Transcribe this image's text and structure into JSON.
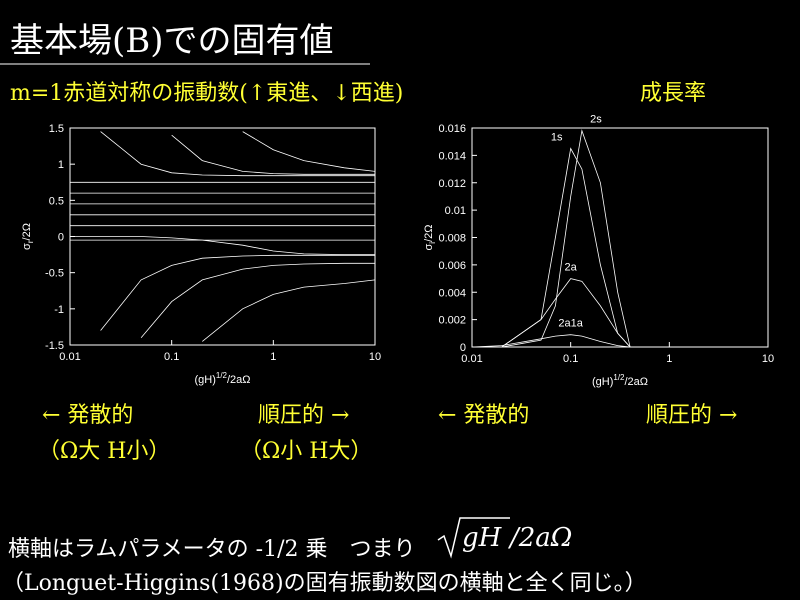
{
  "header": {
    "title": "基本場(B)での固有値",
    "subtitle": "m=1赤道対称の振動数(↑東進、↓西進)",
    "growth_label": "成長率"
  },
  "notes": {
    "left_arrow_1": "←  発散的",
    "right_arrow_1": "順圧的  →",
    "left_paren": "（Ω大 H小）",
    "right_paren": "（Ω小 H大）",
    "left_arrow_2": "←  発散的",
    "right_arrow_2": "順圧的  →"
  },
  "footer": {
    "line1": "横軸はラムパラメータの -1/2 乗　つまり",
    "formula_root": "gH",
    "formula_rest": "/2aΩ",
    "line2": "（Longuet-Higgins(1968)の固有振動数図の横軸と全く同じ。）"
  },
  "chart_data": [
    {
      "type": "line",
      "xlog": true,
      "xlim": [
        0.01,
        10
      ],
      "ylim": [
        -1.5,
        1.5
      ],
      "xticks": [
        0.01,
        0.1,
        1,
        10
      ],
      "yticks": [
        -1.5,
        -1,
        -0.5,
        0,
        0.5,
        1,
        1.5
      ],
      "xlabel": [
        "(gH)",
        "1/2",
        "/2aΩ"
      ],
      "ylabel": [
        "σ",
        "r",
        "/2Ω"
      ],
      "color": "#ffffff",
      "x": [
        0.01,
        0.02,
        0.05,
        0.1,
        0.2,
        0.5,
        1,
        2,
        5,
        10
      ],
      "series": [
        {
          "values": [
            null,
            null,
            null,
            null,
            null,
            1.45,
            1.2,
            1.05,
            0.95,
            0.9
          ]
        },
        {
          "values": [
            null,
            null,
            null,
            1.4,
            1.05,
            0.9,
            0.87,
            0.86,
            0.86,
            0.86
          ]
        },
        {
          "values": [
            null,
            1.45,
            1.0,
            0.88,
            0.85,
            0.84,
            0.84,
            0.84,
            0.84,
            0.84
          ]
        },
        {
          "values": [
            0.75,
            0.75,
            0.75,
            0.75,
            0.75,
            0.75,
            0.75,
            0.75,
            0.75,
            0.75
          ]
        },
        {
          "values": [
            0.6,
            0.6,
            0.6,
            0.6,
            0.6,
            0.6,
            0.6,
            0.6,
            0.6,
            0.6
          ]
        },
        {
          "values": [
            0.45,
            0.45,
            0.45,
            0.45,
            0.45,
            0.45,
            0.45,
            0.45,
            0.45,
            0.45
          ]
        },
        {
          "values": [
            0.3,
            0.3,
            0.3,
            0.3,
            0.3,
            0.3,
            0.3,
            0.3,
            0.3,
            0.3
          ]
        },
        {
          "values": [
            0.15,
            0.15,
            0.15,
            0.15,
            0.15,
            0.15,
            0.15,
            0.15,
            0.15,
            0.15
          ]
        },
        {
          "values": [
            -0.05,
            -0.05,
            -0.05,
            -0.05,
            -0.05,
            -0.05,
            -0.05,
            -0.05,
            -0.05,
            -0.05
          ]
        },
        {
          "values": [
            0,
            0,
            0,
            -0.02,
            -0.05,
            -0.12,
            -0.2,
            -0.24,
            -0.25,
            -0.25
          ]
        },
        {
          "values": [
            null,
            -1.3,
            -0.6,
            -0.4,
            -0.3,
            -0.27,
            -0.26,
            -0.26,
            -0.26,
            -0.26
          ]
        },
        {
          "values": [
            null,
            null,
            -1.4,
            -0.9,
            -0.6,
            -0.45,
            -0.4,
            -0.38,
            -0.37,
            -0.37
          ]
        },
        {
          "values": [
            null,
            null,
            null,
            null,
            -1.45,
            -1.0,
            -0.8,
            -0.7,
            -0.65,
            -0.6
          ]
        }
      ]
    },
    {
      "type": "line",
      "xlog": true,
      "xlim": [
        0.01,
        10
      ],
      "ylim": [
        0,
        0.016
      ],
      "xticks": [
        0.01,
        0.1,
        1,
        10
      ],
      "yticks": [
        0,
        0.002,
        0.004,
        0.006,
        0.008,
        0.01,
        0.012,
        0.014,
        0.016
      ],
      "xlabel": [
        "(gH)",
        "1/2",
        "/2aΩ"
      ],
      "ylabel": [
        "σ",
        "i",
        "/2Ω"
      ],
      "color": "#ffffff",
      "x": [
        0.01,
        0.02,
        0.05,
        0.07,
        0.1,
        0.13,
        0.2,
        0.3,
        0.4
      ],
      "series": [
        {
          "name": "1s",
          "values": [
            0,
            0,
            0.002,
            0.008,
            0.0145,
            0.013,
            0.006,
            0.001,
            0
          ]
        },
        {
          "name": "2s",
          "values": [
            0,
            0,
            0.0005,
            0.003,
            0.011,
            0.0158,
            0.012,
            0.004,
            0
          ]
        },
        {
          "name": "2a",
          "values": [
            0,
            0,
            0.002,
            0.0035,
            0.005,
            0.0048,
            0.003,
            0.001,
            0
          ]
        },
        {
          "name": "2a1a",
          "values": [
            0,
            0.0001,
            0.0006,
            0.0008,
            0.0009,
            0.0008,
            0.0004,
            0.0001,
            0
          ]
        }
      ]
    }
  ]
}
